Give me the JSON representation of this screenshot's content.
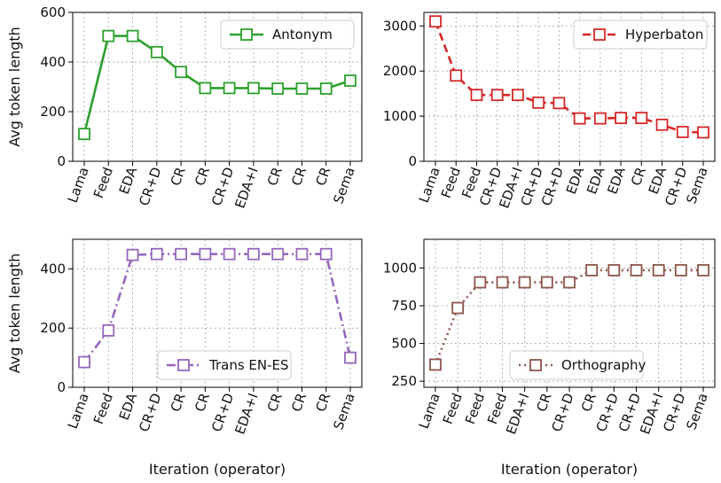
{
  "chart_data": [
    {
      "type": "line",
      "series": [
        {
          "name": "Antonym",
          "color": "#2ca02c",
          "dash": "solid",
          "values": [
            110,
            505,
            505,
            440,
            360,
            295,
            295,
            295,
            293,
            293,
            293,
            325
          ]
        }
      ],
      "categories": [
        "Lama",
        "Feed",
        "EDA",
        "CR+D",
        "CR",
        "CR",
        "CR+D",
        "EDA+I",
        "CR",
        "CR",
        "CR",
        "Sema"
      ],
      "ylim": [
        0,
        600
      ],
      "yticks": [
        "0",
        "200",
        "400",
        "600"
      ],
      "ylabel": "Avg token length",
      "xlabel": "",
      "legend": "top-right"
    },
    {
      "type": "line",
      "series": [
        {
          "name": "Hyperbaton",
          "color": "#d62728",
          "dash": "dashed",
          "values": [
            3100,
            1900,
            1470,
            1470,
            1470,
            1300,
            1290,
            950,
            950,
            960,
            960,
            810,
            650,
            640
          ]
        }
      ],
      "categories": [
        "Lama",
        "Feed",
        "Feed",
        "CR+D",
        "EDA+I",
        "CR+D",
        "CR+D",
        "EDA",
        "EDA",
        "EDA",
        "CR",
        "EDA",
        "CR+D",
        "Sema"
      ],
      "ylim": [
        0,
        3300
      ],
      "yticks": [
        "0",
        "1000",
        "2000",
        "3000"
      ],
      "ylabel": "",
      "xlabel": "",
      "legend": "top-right"
    },
    {
      "type": "line",
      "series": [
        {
          "name": "Trans EN-ES",
          "color": "#9467bd",
          "dash": "dashdot",
          "values": [
            85,
            192,
            447,
            450,
            450,
            450,
            450,
            450,
            450,
            450,
            450,
            100
          ]
        }
      ],
      "categories": [
        "Lama",
        "Feed",
        "EDA",
        "CR+D",
        "CR",
        "CR",
        "CR+D",
        "EDA+I",
        "CR",
        "CR",
        "CR",
        "Sema"
      ],
      "ylim": [
        0,
        500
      ],
      "yticks": [
        "0",
        "200",
        "400"
      ],
      "ylabel": "Avg token length",
      "xlabel": "Iteration (operator)",
      "legend": "bottom-center"
    },
    {
      "type": "line",
      "series": [
        {
          "name": "Orthography",
          "color": "#8c564b",
          "dash": "dotted",
          "values": [
            360,
            735,
            905,
            905,
            905,
            905,
            905,
            985,
            985,
            985,
            985,
            985,
            985
          ]
        }
      ],
      "categories": [
        "Lama",
        "Feed",
        "Feed",
        "Feed",
        "EDA+I",
        "CR",
        "CR+D",
        "CR",
        "CR+D",
        "CR+D",
        "EDA+I",
        "CR+D",
        "Sema"
      ],
      "ylim": [
        210,
        1190
      ],
      "yticks": [
        "250",
        "500",
        "750",
        "1000"
      ],
      "ylabel": "",
      "xlabel": "Iteration (operator)",
      "legend": "bottom-center"
    }
  ]
}
